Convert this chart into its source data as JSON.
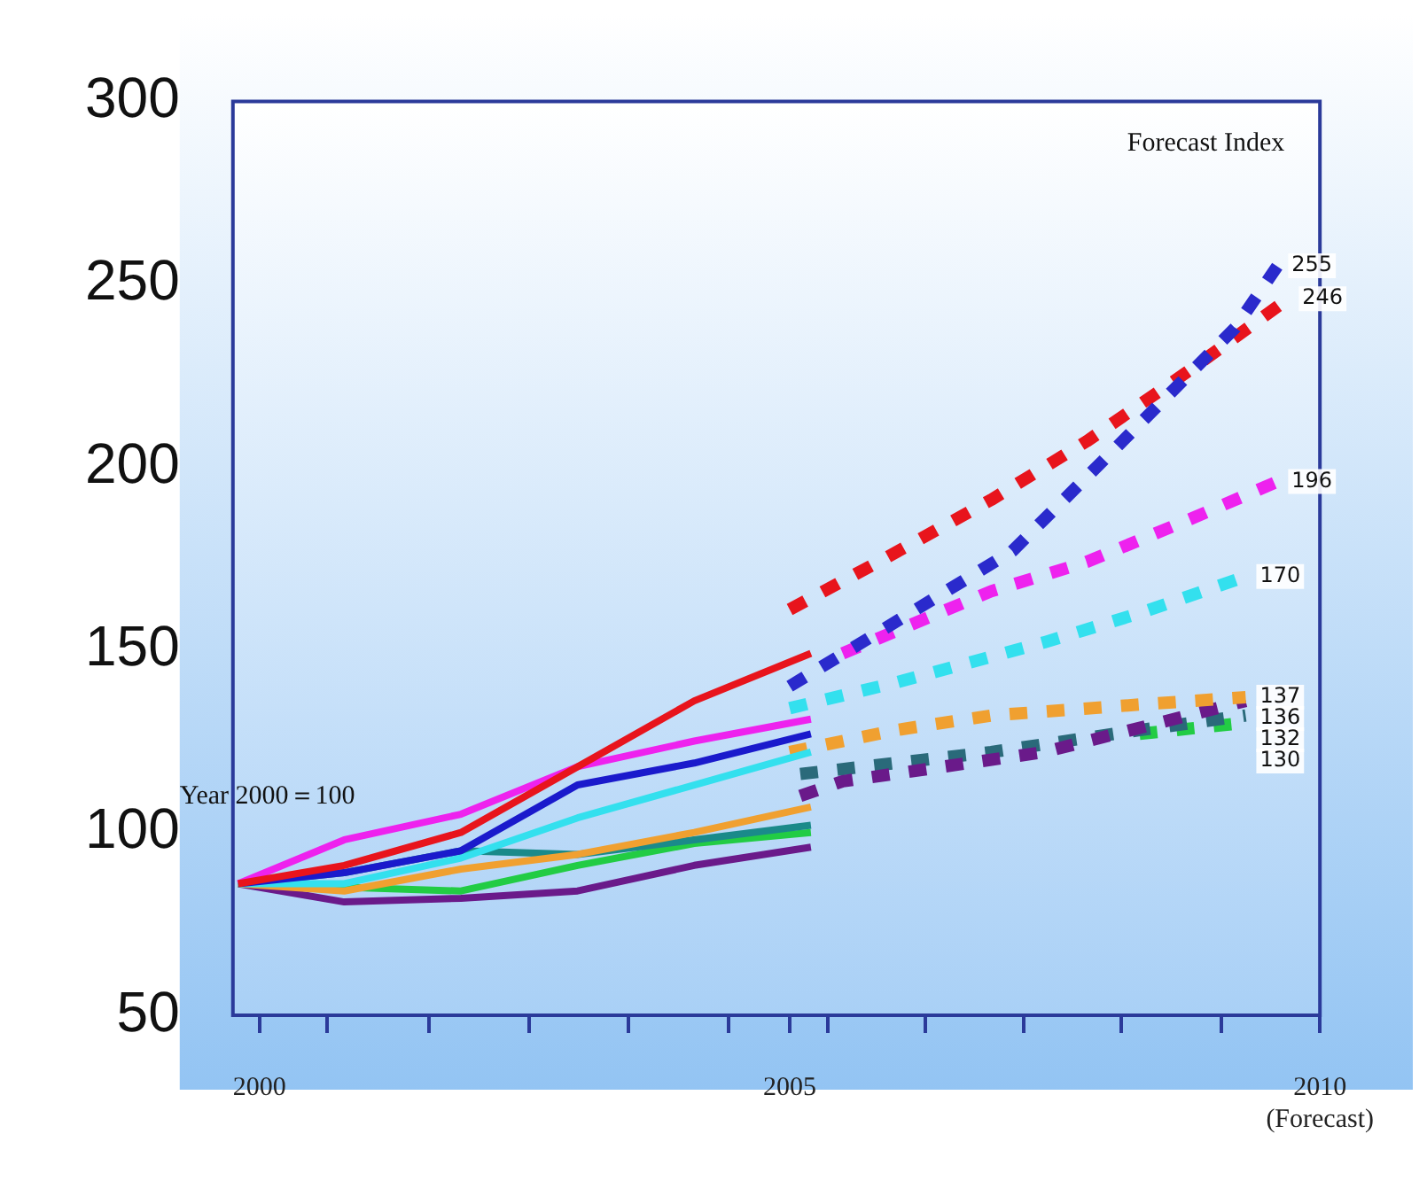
{
  "chart_data": {
    "type": "line",
    "annotations": [
      "Forecast Index",
      "Year 2000＝100"
    ],
    "xlim": [
      1999.75,
      2010
    ],
    "xticks": [
      2000,
      {
        "value": 2000.64,
        "label": null
      },
      {
        "value": 2001.6,
        "label": null
      },
      {
        "value": 2002.54,
        "label": null
      },
      {
        "value": 2003.48,
        "label": null
      },
      {
        "value": 2004.42,
        "label": null
      },
      2005,
      {
        "value": 2005.36,
        "label": null
      },
      {
        "value": 2006.28,
        "label": null
      },
      {
        "value": 2007.21,
        "label": null
      },
      {
        "value": 2008.13,
        "label": null
      },
      {
        "value": 2009.07,
        "label": null
      },
      {
        "value": 2010,
        "label": "2010\n(Forecast)"
      }
    ],
    "ylim": [
      50,
      300
    ],
    "yticks": [
      50,
      100,
      150,
      200,
      250,
      300
    ],
    "grid": false,
    "legend": false,
    "marker": "none",
    "series": [
      {
        "color": "#e8141c",
        "line_style": "solid",
        "x": [
          1999.8,
          2000.8,
          2001.9,
          2003,
          2004.1,
          2005.2
        ],
        "values": [
          86,
          91,
          100,
          118,
          136,
          149
        ]
      },
      {
        "color": "#ee22ee",
        "line_style": "solid",
        "x": [
          1999.8,
          2000.8,
          2001.9,
          2003,
          2004.1,
          2005.2
        ],
        "values": [
          86,
          98,
          105,
          118,
          125,
          131
        ]
      },
      {
        "color": "#1a1acc",
        "line_style": "solid",
        "x": [
          1999.8,
          2000.8,
          2001.9,
          2003,
          2004.1,
          2005.2
        ],
        "values": [
          86,
          89,
          95,
          113,
          119,
          127
        ]
      },
      {
        "color": "#33e0ee",
        "line_style": "solid",
        "x": [
          1999.8,
          2000.8,
          2001.9,
          2003,
          2004.1,
          2005.2
        ],
        "values": [
          86,
          86,
          93,
          104,
          113,
          122
        ]
      },
      {
        "color": "#f0a030",
        "line_style": "solid",
        "x": [
          1999.8,
          2000.8,
          2001.9,
          2003,
          2004.1,
          2005.2
        ],
        "values": [
          86,
          84,
          90,
          94,
          100,
          107
        ]
      },
      {
        "color": "#1a8a8a",
        "line_style": "solid",
        "x": [
          1999.8,
          2000.8,
          2001.9,
          2003,
          2004.1,
          2005.2
        ],
        "values": [
          86,
          89,
          95,
          94,
          98,
          102
        ]
      },
      {
        "color": "#22cc44",
        "line_style": "solid",
        "x": [
          1999.8,
          2000.8,
          2001.9,
          2003,
          2004.1,
          2005.2
        ],
        "values": [
          86,
          85,
          84,
          91,
          97,
          100
        ]
      },
      {
        "color": "#6a1a8a",
        "line_style": "solid",
        "x": [
          1999.8,
          2000.8,
          2001.9,
          2003,
          2004.1,
          2005.2
        ],
        "values": [
          86,
          81,
          82,
          84,
          91,
          96
        ]
      },
      {
        "color": "#2a2acc",
        "line_style": "dashed",
        "x": [
          2005,
          2007.1,
          2008,
          2009.2,
          2009.6
        ],
        "values": [
          140,
          177,
          203,
          238,
          255
        ],
        "value_labels": [
          null,
          null,
          null,
          null,
          "255"
        ]
      },
      {
        "color": "#e8141c",
        "line_style": "dashed",
        "x": [
          2005,
          2005.9,
          2006.9,
          2007.8,
          2008.3,
          2008.8,
          2009.7
        ],
        "values": [
          161,
          175,
          191,
          207,
          217,
          227,
          246
        ],
        "value_labels": [
          null,
          null,
          null,
          null,
          null,
          null,
          "246"
        ]
      },
      {
        "color": "#ee22ee",
        "line_style": "dashed",
        "x": [
          2005.5,
          2006.9,
          2007.8,
          2008.8,
          2009.6
        ],
        "values": [
          149,
          166,
          174,
          186,
          196
        ],
        "value_labels": [
          null,
          null,
          null,
          null,
          "196"
        ]
      },
      {
        "color": "#33e0ee",
        "line_style": "dashed",
        "x": [
          2005,
          2006,
          2007.4,
          2008.3,
          2009.3
        ],
        "values": [
          134,
          141,
          152,
          160,
          170
        ],
        "value_labels": [
          null,
          null,
          null,
          null,
          "170"
        ]
      },
      {
        "color": "#f0a030",
        "line_style": "dashed",
        "x": [
          2005,
          2006,
          2006.9,
          2008.3,
          2009.3
        ],
        "values": [
          122,
          128,
          132,
          135,
          137
        ],
        "value_labels": [
          null,
          null,
          null,
          null,
          "137"
        ]
      },
      {
        "color": "#6a1a8a",
        "line_style": "dashed",
        "x": [
          2005.1,
          2005.5,
          2007.4,
          2009.3
        ],
        "values": [
          110,
          114,
          122,
          136
        ],
        "value_labels": [
          null,
          null,
          null,
          "136"
        ]
      },
      {
        "color": "#2a6a7a",
        "line_style": "dashed",
        "x": [
          2005.1,
          2006.9,
          2008.3,
          2009.3
        ],
        "values": [
          116,
          122,
          128,
          132
        ],
        "value_labels": [
          null,
          null,
          null,
          "132"
        ]
      },
      {
        "color": "#22cc44",
        "line_style": "dashed",
        "x": [
          2008.3,
          2009.3
        ],
        "values": [
          127,
          130
        ],
        "value_labels": [
          null,
          "130"
        ]
      }
    ]
  }
}
